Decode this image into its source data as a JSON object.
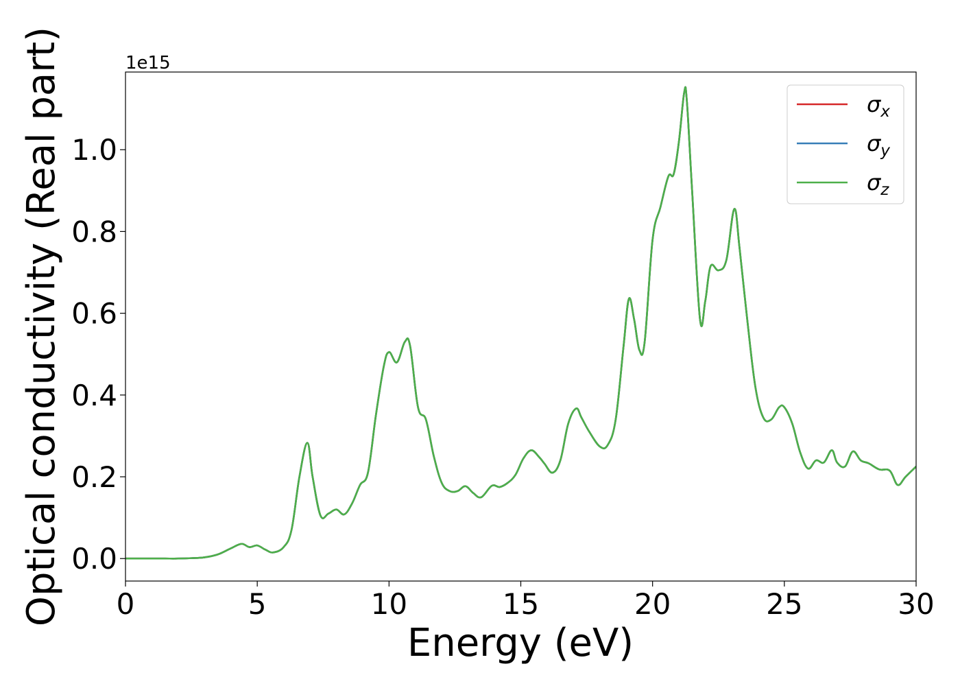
{
  "chart_data": {
    "type": "line",
    "xlabel": "Energy (eV)",
    "ylabel": "Optical conductivity (Real part)",
    "offset_label": "1e15",
    "xlim": [
      0,
      30
    ],
    "ylim": [
      -0.055,
      1.19
    ],
    "x_ticks": [
      0,
      5,
      10,
      15,
      20,
      25,
      30
    ],
    "y_ticks": [
      0.0,
      0.2,
      0.4,
      0.6,
      0.8,
      1.0
    ],
    "grid": false,
    "legend_position": "top-right",
    "x": [
      0,
      0.5,
      1,
      1.5,
      2,
      2.5,
      3,
      3.5,
      4,
      4.4,
      4.7,
      5,
      5.3,
      5.6,
      6,
      6.3,
      6.6,
      6.9,
      7.1,
      7.4,
      7.7,
      8,
      8.3,
      8.6,
      8.9,
      9.2,
      9.5,
      9.8,
      10,
      10.3,
      10.6,
      10.8,
      11.1,
      11.4,
      11.7,
      12,
      12.3,
      12.6,
      12.9,
      13.2,
      13.5,
      13.9,
      14.2,
      14.5,
      14.8,
      15.1,
      15.4,
      15.7,
      15.9,
      16.2,
      16.5,
      16.8,
      17.1,
      17.3,
      17.6,
      18,
      18.3,
      18.6,
      18.9,
      19.1,
      19.3,
      19.5,
      19.7,
      20,
      20.3,
      20.6,
      20.8,
      21,
      21.2,
      21.3,
      21.5,
      21.8,
      22,
      22.2,
      22.5,
      22.8,
      23.1,
      23.3,
      23.6,
      23.9,
      24.2,
      24.5,
      24.8,
      25,
      25.3,
      25.6,
      25.9,
      26.2,
      26.5,
      26.8,
      27,
      27.3,
      27.6,
      27.9,
      28.2,
      28.6,
      29,
      29.3,
      29.6,
      30
    ],
    "series": [
      {
        "name": "x",
        "color": "#d62728",
        "values": [
          0.0,
          0.0,
          0.0,
          0.0,
          0.0,
          0.001,
          0.003,
          0.01,
          0.025,
          0.036,
          0.028,
          0.032,
          0.022,
          0.015,
          0.028,
          0.07,
          0.2,
          0.283,
          0.2,
          0.105,
          0.11,
          0.12,
          0.108,
          0.135,
          0.18,
          0.21,
          0.35,
          0.47,
          0.505,
          0.48,
          0.53,
          0.52,
          0.37,
          0.34,
          0.25,
          0.185,
          0.165,
          0.165,
          0.177,
          0.16,
          0.15,
          0.178,
          0.175,
          0.185,
          0.205,
          0.245,
          0.265,
          0.248,
          0.232,
          0.21,
          0.24,
          0.33,
          0.367,
          0.345,
          0.31,
          0.274,
          0.278,
          0.34,
          0.52,
          0.635,
          0.585,
          0.51,
          0.53,
          0.78,
          0.86,
          0.935,
          0.94,
          1.02,
          1.14,
          1.12,
          0.9,
          0.585,
          0.63,
          0.715,
          0.705,
          0.73,
          0.855,
          0.76,
          0.58,
          0.42,
          0.345,
          0.34,
          0.37,
          0.37,
          0.33,
          0.26,
          0.22,
          0.24,
          0.235,
          0.265,
          0.235,
          0.225,
          0.262,
          0.24,
          0.233,
          0.218,
          0.215,
          0.18,
          0.2,
          0.225
        ]
      },
      {
        "name": "y",
        "color": "#377eb8",
        "values": [
          0.0,
          0.0,
          0.0,
          0.0,
          0.0,
          0.001,
          0.003,
          0.01,
          0.025,
          0.036,
          0.028,
          0.032,
          0.022,
          0.015,
          0.028,
          0.07,
          0.2,
          0.283,
          0.2,
          0.105,
          0.11,
          0.12,
          0.108,
          0.135,
          0.18,
          0.21,
          0.35,
          0.47,
          0.505,
          0.48,
          0.53,
          0.52,
          0.37,
          0.34,
          0.25,
          0.185,
          0.165,
          0.165,
          0.177,
          0.16,
          0.15,
          0.178,
          0.175,
          0.185,
          0.205,
          0.245,
          0.265,
          0.248,
          0.232,
          0.21,
          0.24,
          0.33,
          0.367,
          0.345,
          0.31,
          0.274,
          0.278,
          0.34,
          0.52,
          0.635,
          0.585,
          0.51,
          0.53,
          0.78,
          0.86,
          0.935,
          0.94,
          1.02,
          1.14,
          1.12,
          0.9,
          0.585,
          0.63,
          0.715,
          0.705,
          0.73,
          0.855,
          0.76,
          0.58,
          0.42,
          0.345,
          0.34,
          0.37,
          0.37,
          0.33,
          0.26,
          0.22,
          0.24,
          0.235,
          0.265,
          0.235,
          0.225,
          0.262,
          0.24,
          0.233,
          0.218,
          0.215,
          0.18,
          0.2,
          0.225
        ]
      },
      {
        "name": "z",
        "color": "#4daf4a",
        "values": [
          0.0,
          0.0,
          0.0,
          0.0,
          0.0,
          0.001,
          0.003,
          0.01,
          0.025,
          0.036,
          0.028,
          0.032,
          0.022,
          0.015,
          0.028,
          0.07,
          0.2,
          0.283,
          0.2,
          0.105,
          0.11,
          0.12,
          0.108,
          0.135,
          0.18,
          0.21,
          0.35,
          0.47,
          0.505,
          0.48,
          0.53,
          0.52,
          0.37,
          0.34,
          0.25,
          0.185,
          0.165,
          0.165,
          0.177,
          0.16,
          0.15,
          0.178,
          0.175,
          0.185,
          0.205,
          0.245,
          0.265,
          0.248,
          0.232,
          0.21,
          0.24,
          0.33,
          0.367,
          0.345,
          0.31,
          0.274,
          0.278,
          0.34,
          0.52,
          0.635,
          0.585,
          0.51,
          0.53,
          0.78,
          0.86,
          0.935,
          0.94,
          1.02,
          1.14,
          1.12,
          0.9,
          0.585,
          0.63,
          0.715,
          0.705,
          0.73,
          0.855,
          0.76,
          0.58,
          0.42,
          0.345,
          0.34,
          0.37,
          0.37,
          0.33,
          0.26,
          0.22,
          0.24,
          0.235,
          0.265,
          0.235,
          0.225,
          0.262,
          0.24,
          0.233,
          0.218,
          0.215,
          0.18,
          0.2,
          0.225
        ]
      }
    ]
  }
}
